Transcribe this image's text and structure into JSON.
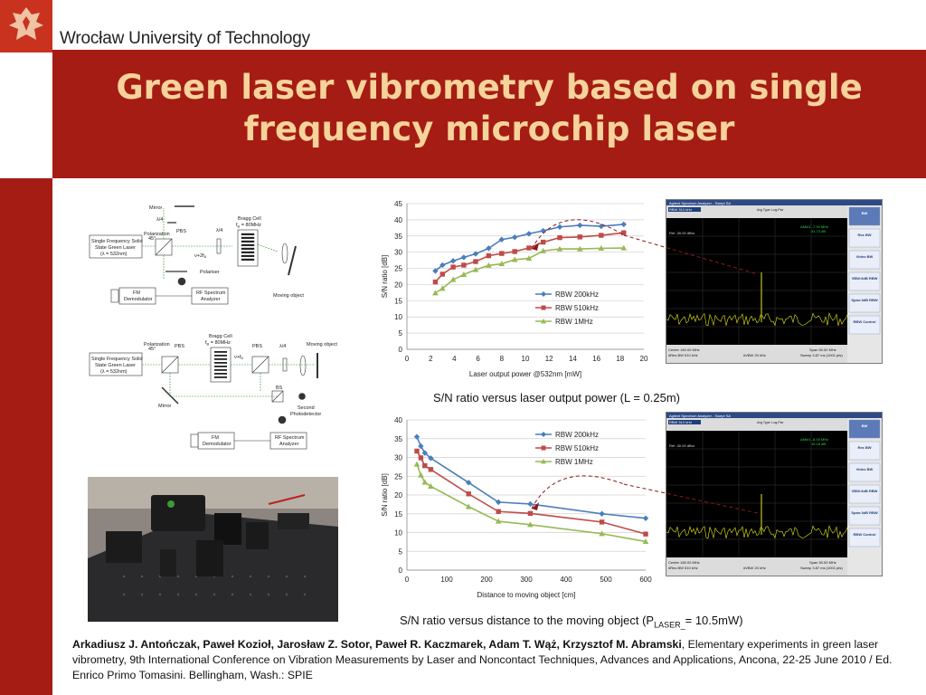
{
  "header": {
    "university": "Wrocław University of Technology",
    "title_line1": "Green laser vibrometry based on single",
    "title_line2": "frequency microchip laser"
  },
  "diagram1": {
    "mirror": "Mirror",
    "lambda4": "λ/4",
    "pbs": "PBS",
    "bragg_cell": "Bragg Cell",
    "bragg_freq": "f",
    "bragg_freq_sub": "B",
    "bragg_freq_val": " = 80MHz",
    "laser_line1": "Single Frequency Solid",
    "laser_line2": "State Green Laser",
    "laser_line3": "(λ = 532nm)",
    "polarization": "Polarization",
    "polarization_angle": "45°",
    "polariser": "Polariser",
    "fm_demod_1": "FM",
    "fm_demod_2": "Demodulator",
    "rf_1": "RF Spectrum",
    "rf_2": "Analyzer",
    "moving_object": "Moving object",
    "nu_2fb": "ν+2f",
    "nu_2fb_sub": "B"
  },
  "diagram2": {
    "bragg_cell": "Bragg Cell",
    "bragg_freq": "f",
    "bragg_freq_sub": "B",
    "bragg_freq_val": " = 80MHz",
    "polarization": "Polarization",
    "polarization_angle": "45°",
    "pbs_left": "PBS",
    "pbs_right": "PBS",
    "lambda4": "λ/4",
    "moving_object": "Moving object",
    "laser_line1": "Single Frequency Solid",
    "laser_line2": "State Green Laser",
    "laser_line3": "(λ = 532nm)",
    "bs": "BS",
    "mirror": "Mirror",
    "second_pd_1": "Second",
    "second_pd_2": "Photodetector",
    "fm_demod_1": "FM",
    "fm_demod_2": "Demodulator",
    "rf_1": "RF Spectrum",
    "rf_2": "Analyzer",
    "nu_fb": "ν+f",
    "nu_fb_sub": "B"
  },
  "chart_data": [
    {
      "type": "line",
      "xlabel": "Laser output power @532nm [mW]",
      "ylabel": "S/N ratio [dB]",
      "xlim": [
        0,
        20
      ],
      "ylim": [
        0,
        45
      ],
      "xticks": [
        0,
        2,
        4,
        6,
        8,
        10,
        12,
        14,
        16,
        18,
        20
      ],
      "yticks": [
        0,
        5,
        10,
        15,
        20,
        25,
        30,
        35,
        40,
        45
      ],
      "grid": true,
      "legend_position": "bottom-right",
      "series": [
        {
          "name": "RBW 200kHz",
          "color": "#4a7ebb",
          "marker": "diamond",
          "x": [
            2.4,
            3.0,
            3.9,
            4.8,
            5.8,
            6.9,
            8.0,
            9.1,
            10.3,
            11.5,
            12.9,
            14.6,
            16.4,
            18.3
          ],
          "y": [
            24.2,
            26.0,
            27.3,
            28.4,
            29.5,
            31.2,
            33.9,
            34.6,
            35.7,
            36.6,
            37.8,
            38.3,
            38.0,
            38.6
          ]
        },
        {
          "name": "RBW 510kHz",
          "color": "#be4b48",
          "marker": "square",
          "x": [
            2.4,
            3.0,
            3.9,
            4.8,
            5.8,
            6.9,
            8.0,
            9.1,
            10.3,
            11.5,
            12.9,
            14.6,
            16.4,
            18.3
          ],
          "y": [
            20.8,
            23.2,
            25.4,
            26.0,
            27.1,
            28.9,
            29.6,
            30.2,
            31.3,
            33.1,
            34.5,
            34.7,
            35.2,
            36.0
          ]
        },
        {
          "name": "RBW 1MHz",
          "color": "#98b954",
          "marker": "triangle",
          "x": [
            2.4,
            3.0,
            3.9,
            4.8,
            5.8,
            6.9,
            8.0,
            9.1,
            10.3,
            11.5,
            12.9,
            14.6,
            16.4,
            18.3
          ],
          "y": [
            17.4,
            18.8,
            21.5,
            23.1,
            24.6,
            25.9,
            26.4,
            27.7,
            28.1,
            30.4,
            31.0,
            31.0,
            31.2,
            31.3
          ]
        }
      ]
    },
    {
      "type": "line",
      "xlabel": "Distance to moving object [cm]",
      "ylabel": "S/N ratio [dB]",
      "xlim": [
        0,
        600
      ],
      "ylim": [
        0,
        40
      ],
      "xticks": [
        0,
        100,
        200,
        300,
        400,
        500,
        600
      ],
      "yticks": [
        0,
        5,
        10,
        15,
        20,
        25,
        30,
        35,
        40
      ],
      "grid": true,
      "legend_position": "top-right",
      "series": [
        {
          "name": "RBW 200kHz",
          "color": "#4a7ebb",
          "marker": "diamond",
          "x": [
            25,
            35,
            45,
            60,
            155,
            230,
            310,
            490,
            600
          ],
          "y": [
            35.5,
            33.0,
            31.2,
            29.8,
            23.3,
            18.1,
            17.6,
            15.0,
            13.8
          ]
        },
        {
          "name": "RBW 510kHz",
          "color": "#be4b48",
          "marker": "square",
          "x": [
            25,
            35,
            45,
            60,
            155,
            230,
            310,
            490,
            600
          ],
          "y": [
            31.7,
            29.9,
            27.8,
            26.8,
            20.3,
            15.6,
            15.1,
            12.8,
            9.6
          ]
        },
        {
          "name": "RBW 1MHz",
          "color": "#98b954",
          "marker": "triangle",
          "x": [
            25,
            35,
            45,
            60,
            155,
            230,
            310,
            490,
            600
          ],
          "y": [
            28.2,
            25.3,
            23.4,
            22.3,
            16.9,
            13.0,
            12.1,
            9.7,
            7.6
          ]
        }
      ]
    }
  ],
  "caption1": "S/N ratio versus laser output power (L = 0.25m)",
  "caption2_main": "S/N ratio versus distance to the moving object (P",
  "caption2_sub": "LASER_",
  "caption2_end": "= 10.5mW)",
  "spectrum1": {
    "title": "Agilent Spectrum Analyzer - Swept SA",
    "rbw": "RBW  510 kHz",
    "avg": "Avg Type: Log-Pwr",
    "marker": "ΔMkr1 -7.90 MHz",
    "marker_val": "31.73 dB",
    "ref": "Ref -30.00 dBm",
    "center": "Center 180.00 MHz",
    "res_bw": "#Res BW 510 kHz",
    "vbw": "#VBW 20 kHz",
    "span": "Span 50.00 MHz",
    "sweep": "Sweep  3.87 ms (1001 pts)",
    "side": [
      "BW",
      "Res BW",
      "Video BW",
      "VBW:3dB RBW",
      "Span:3dB RBW",
      "RBW Control"
    ]
  },
  "spectrum2": {
    "title": "Agilent Spectrum Analyzer - Swept SA",
    "rbw": "RBW  510 kHz",
    "avg": "Avg Type: Log-Pwr",
    "marker": "ΔMkr1 -8.00 MHz",
    "marker_val": "15.16 dB",
    "ref": "Ref -30.00 dBm",
    "center": "Center 180.00 MHz",
    "res_bw": "#Res BW 510 kHz",
    "vbw": "#VBW 20 kHz",
    "span": "Span 50.00 MHz",
    "sweep": "Sweep  3.87 ms (1001 pts)",
    "side": [
      "BW",
      "Res BW",
      "Video BW",
      "VBW:3dB RBW",
      "Span:3dB RBW",
      "RBW Control"
    ]
  },
  "reference": {
    "authors": "Arkadiusz J. Antończak, Paweł Kozioł, Jarosław Z. Sotor, Paweł R. Kaczmarek, Adam T. Wąż, Krzysztof M. Abramski",
    "rest": ", Elementary experiments in green laser vibrometry, 9th International Conference on Vibration Measurements by Laser and Noncontact Techniques, Advances and Applications, Ancona, 22-25 June 2010 / Ed. Enrico Primo Tomasini. Bellingham, Wash.: SPIE"
  }
}
